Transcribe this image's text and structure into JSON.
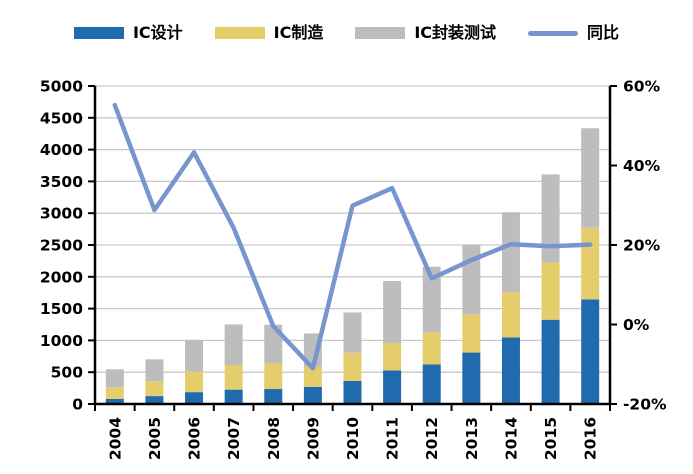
{
  "chart_data": {
    "type": "stacked-bar+line",
    "title": "",
    "categories": [
      "2004",
      "2005",
      "2006",
      "2007",
      "2008",
      "2009",
      "2010",
      "2011",
      "2012",
      "2013",
      "2014",
      "2015",
      "2016"
    ],
    "series": [
      {
        "name": "IC设计",
        "color": "#1F6BAD",
        "values": [
          81.5,
          124.3,
          186.2,
          225.7,
          235.3,
          269.9,
          363.9,
          526.4,
          621.7,
          808.8,
          1047.4,
          1325.0,
          1644.3
        ]
      },
      {
        "name": "IC制造",
        "color": "#E6CD6C",
        "values": [
          181.2,
          232.9,
          323.5,
          387.9,
          402.9,
          317.2,
          440.8,
          433.0,
          501.1,
          600.9,
          712.1,
          900.8,
          1126.9
        ]
      },
      {
        "name": "IC封装测试",
        "color": "#BDBDBD",
        "values": [
          282.6,
          344.9,
          496.6,
          637.7,
          608.6,
          522.0,
          635.5,
          974.3,
          1035.7,
          1098.8,
          1255.9,
          1384.0,
          1564.3
        ]
      }
    ],
    "stack_totals": [
      545.3,
      702.1,
      1006.3,
      1251.3,
      1246.8,
      1109.1,
      1440.2,
      1933.7,
      2158.5,
      2508.5,
      3015.4,
      3609.8,
      4335.5
    ],
    "line_series": {
      "name": "同比",
      "color": "#7796CE",
      "axis": "right",
      "values_pct": [
        55.2,
        28.8,
        43.3,
        24.3,
        -0.4,
        -11.0,
        29.9,
        34.3,
        11.6,
        16.2,
        20.2,
        19.7,
        20.1
      ]
    },
    "axes": {
      "left": {
        "min": 0,
        "max": 5000,
        "step": 500,
        "tick_labels": [
          "0",
          "500",
          "1000",
          "1500",
          "2000",
          "2500",
          "3000",
          "3500",
          "4000",
          "4500",
          "5000"
        ]
      },
      "right": {
        "min": -20,
        "max": 60,
        "step": 20,
        "tick_labels": [
          "-20%",
          "0%",
          "20%",
          "40%",
          "60%"
        ]
      },
      "grid": true,
      "grid_color": "#C9C9C9",
      "axis_color": "#000000",
      "legend_position": "top"
    }
  }
}
